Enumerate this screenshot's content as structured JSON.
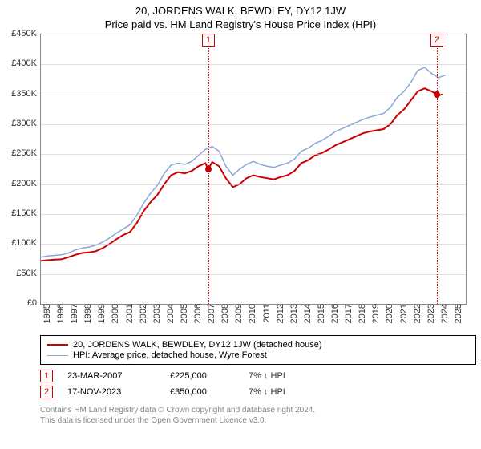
{
  "title_line1": "20, JORDENS WALK, BEWDLEY, DY12 1JW",
  "title_line2": "Price paid vs. HM Land Registry's House Price Index (HPI)",
  "chart": {
    "type": "line",
    "background_color": "#ffffff",
    "grid_color": "#cccccc",
    "border_color": "#888888",
    "x_years": [
      1995,
      1996,
      1997,
      1998,
      1999,
      2000,
      2001,
      2002,
      2003,
      2004,
      2005,
      2006,
      2007,
      2008,
      2009,
      2010,
      2011,
      2012,
      2013,
      2014,
      2015,
      2016,
      2017,
      2018,
      2019,
      2020,
      2021,
      2022,
      2023,
      2024,
      2025
    ],
    "xmin": 1995,
    "xmax": 2026,
    "ymin": 0,
    "ymax": 450000,
    "ytick_step": 50000,
    "ytick_prefix": "£",
    "ytick_suffix": "K",
    "ytick_divisor": 1000,
    "label_fontsize": 11,
    "marker_color": "#cc0000",
    "series": [
      {
        "id": "price_paid",
        "label": "20, JORDENS WALK, BEWDLEY, DY12 1JW (detached house)",
        "color": "#cc0000",
        "line_width": 2,
        "y_by_year": {
          "1995": 72000,
          "1995.5": 73000,
          "1996": 74000,
          "1996.5": 74500,
          "1997": 78000,
          "1997.5": 82000,
          "1998": 85000,
          "1998.5": 86000,
          "1999": 88000,
          "1999.5": 93000,
          "2000": 100000,
          "2000.5": 108000,
          "2001": 115000,
          "2001.5": 120000,
          "2002": 135000,
          "2002.5": 155000,
          "2003": 170000,
          "2003.5": 182000,
          "2004": 200000,
          "2004.5": 215000,
          "2005": 220000,
          "2005.5": 218000,
          "2006": 222000,
          "2006.5": 230000,
          "2007": 235000,
          "2007.22": 225000,
          "2007.5": 237000,
          "2008": 230000,
          "2008.5": 210000,
          "2009": 195000,
          "2009.5": 200000,
          "2010": 210000,
          "2010.5": 215000,
          "2011": 212000,
          "2011.5": 210000,
          "2012": 208000,
          "2012.5": 212000,
          "2013": 215000,
          "2013.5": 222000,
          "2014": 235000,
          "2014.5": 240000,
          "2015": 248000,
          "2015.5": 252000,
          "2016": 258000,
          "2016.5": 265000,
          "2017": 270000,
          "2017.5": 275000,
          "2018": 280000,
          "2018.5": 285000,
          "2019": 288000,
          "2019.5": 290000,
          "2020": 292000,
          "2020.5": 300000,
          "2021": 315000,
          "2021.5": 325000,
          "2022": 340000,
          "2022.5": 355000,
          "2023": 360000,
          "2023.5": 355000,
          "2023.88": 350000,
          "2024": 348000,
          "2024.3": 350000
        }
      },
      {
        "id": "hpi",
        "label": "HPI: Average price, detached house, Wyre Forest",
        "color": "#89a7d6",
        "line_width": 1.5,
        "y_by_year": {
          "1995": 78000,
          "1995.5": 80000,
          "1996": 81000,
          "1996.5": 82000,
          "1997": 85000,
          "1997.5": 90000,
          "1998": 93000,
          "1998.5": 95000,
          "1999": 98000,
          "1999.5": 103000,
          "2000": 110000,
          "2000.5": 118000,
          "2001": 125000,
          "2001.5": 132000,
          "2002": 148000,
          "2002.5": 168000,
          "2003": 185000,
          "2003.5": 198000,
          "2004": 218000,
          "2004.5": 232000,
          "2005": 235000,
          "2005.5": 233000,
          "2006": 238000,
          "2006.5": 248000,
          "2007": 258000,
          "2007.5": 263000,
          "2008": 255000,
          "2008.5": 230000,
          "2009": 215000,
          "2009.5": 225000,
          "2010": 233000,
          "2010.5": 238000,
          "2011": 233000,
          "2011.5": 230000,
          "2012": 228000,
          "2012.5": 232000,
          "2013": 235000,
          "2013.5": 242000,
          "2014": 255000,
          "2014.5": 260000,
          "2015": 268000,
          "2015.5": 273000,
          "2016": 280000,
          "2016.5": 288000,
          "2017": 293000,
          "2017.5": 298000,
          "2018": 303000,
          "2018.5": 308000,
          "2019": 312000,
          "2019.5": 315000,
          "2020": 318000,
          "2020.5": 328000,
          "2021": 345000,
          "2021.5": 355000,
          "2022": 370000,
          "2022.5": 390000,
          "2023": 395000,
          "2023.5": 385000,
          "2024": 378000,
          "2024.5": 382000
        }
      }
    ],
    "sale_markers": [
      {
        "n": "1",
        "year": 2007.22,
        "price": 225000
      },
      {
        "n": "2",
        "year": 2023.88,
        "price": 350000
      }
    ]
  },
  "legend_title": "",
  "sales_rows": [
    {
      "n": "1",
      "date": "23-MAR-2007",
      "price": "£225,000",
      "diff": "7% ↓ HPI"
    },
    {
      "n": "2",
      "date": "17-NOV-2023",
      "price": "£350,000",
      "diff": "7% ↓ HPI"
    }
  ],
  "footer_line1": "Contains HM Land Registry data © Crown copyright and database right 2024.",
  "footer_line2": "This data is licensed under the Open Government Licence v3.0."
}
